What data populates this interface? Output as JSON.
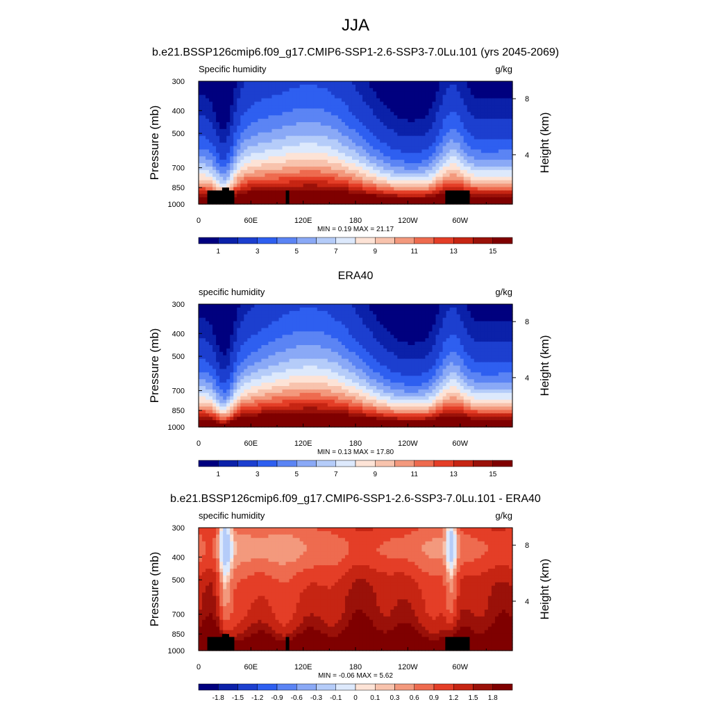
{
  "figure": {
    "title": "JJA"
  },
  "colors": {
    "humidity_scale": [
      "#00007f",
      "#0b21a9",
      "#1c3fcf",
      "#2e5ff0",
      "#5b84f4",
      "#8aa9f6",
      "#b5ccf9",
      "#dde9fc",
      "#fde3d6",
      "#f8c3ad",
      "#f3997d",
      "#ee6b4f",
      "#e43e27",
      "#c62513",
      "#9a1109",
      "#7f0000"
    ],
    "diff_scale": [
      "#00007f",
      "#0b21a9",
      "#1c3fcf",
      "#2e5ff0",
      "#5b84f4",
      "#8aa9f6",
      "#b5ccf9",
      "#dde9fc",
      "#fde3d6",
      "#f8c3ad",
      "#f3997d",
      "#ee6b4f",
      "#e43e27",
      "#c62513",
      "#9a1109",
      "#7f0000"
    ],
    "topography": "#000000"
  },
  "chart_data": [
    {
      "type": "heatmap",
      "title": "b.e21.BSSP126cmip6.f09_g17.CMIP6-SSP1-2.6-SSP3-7.0Lu.101 (yrs 2045-2069)",
      "left_label": "Specific humidity",
      "units": "g/kg",
      "ylabel": "Pressure (mb)",
      "ylabel_right": "Height (km)",
      "x_ticks": [
        "0",
        "60E",
        "120E",
        "180",
        "120W",
        "60W"
      ],
      "x_values": [
        0,
        60,
        120,
        180,
        240,
        300
      ],
      "xlim": [
        0,
        360
      ],
      "y_ticks": [
        "300",
        "400",
        "500",
        "700",
        "850",
        "1000"
      ],
      "y_values": [
        300,
        400,
        500,
        700,
        850,
        1000
      ],
      "ylim": [
        300,
        1000
      ],
      "y_scale": "log",
      "right_ticks": [
        "8",
        "4"
      ],
      "right_values": [
        8,
        4
      ],
      "levels": [
        0.5,
        1,
        2,
        3,
        4,
        5,
        6,
        7,
        8,
        9,
        10,
        11,
        12,
        13,
        14,
        15
      ],
      "colorbar_labels": [
        "1",
        "3",
        "5",
        "7",
        "9",
        "11",
        "13",
        "15"
      ],
      "stats": "MIN =   0.19  MAX =  21.17",
      "field": "model",
      "topography": true
    },
    {
      "type": "heatmap",
      "title": "ERA40",
      "left_label": "specific humidity",
      "units": "g/kg",
      "ylabel": "Pressure (mb)",
      "ylabel_right": "Height (km)",
      "x_ticks": [
        "0",
        "60E",
        "120E",
        "180",
        "120W",
        "60W"
      ],
      "x_values": [
        0,
        60,
        120,
        180,
        240,
        300
      ],
      "xlim": [
        0,
        360
      ],
      "y_ticks": [
        "300",
        "400",
        "500",
        "700",
        "850",
        "1000"
      ],
      "y_values": [
        300,
        400,
        500,
        700,
        850,
        1000
      ],
      "ylim": [
        300,
        1000
      ],
      "y_scale": "log",
      "right_ticks": [
        "8",
        "4"
      ],
      "right_values": [
        8,
        4
      ],
      "levels": [
        0.5,
        1,
        2,
        3,
        4,
        5,
        6,
        7,
        8,
        9,
        10,
        11,
        12,
        13,
        14,
        15
      ],
      "colorbar_labels": [
        "1",
        "3",
        "5",
        "7",
        "9",
        "11",
        "13",
        "15"
      ],
      "stats": "MIN =   0.13  MAX =  17.80",
      "field": "obs",
      "topography": false
    },
    {
      "type": "heatmap",
      "title": "b.e21.BSSP126cmip6.f09_g17.CMIP6-SSP1-2.6-SSP3-7.0Lu.101 - ERA40",
      "left_label": "specific humidity",
      "units": "g/kg",
      "ylabel": "Pressure (mb)",
      "ylabel_right": "Height (km)",
      "x_ticks": [
        "0",
        "60E",
        "120E",
        "180",
        "120W",
        "60W"
      ],
      "x_values": [
        0,
        60,
        120,
        180,
        240,
        300
      ],
      "xlim": [
        0,
        360
      ],
      "y_ticks": [
        "300",
        "400",
        "500",
        "700",
        "850",
        "1000"
      ],
      "y_values": [
        300,
        400,
        500,
        700,
        850,
        1000
      ],
      "ylim": [
        300,
        1000
      ],
      "y_scale": "log",
      "right_ticks": [
        "8",
        "4"
      ],
      "right_values": [
        8,
        4
      ],
      "levels": [
        -2.1,
        -1.8,
        -1.5,
        -1.2,
        -0.9,
        -0.6,
        -0.3,
        -0.1,
        0,
        0.1,
        0.3,
        0.6,
        0.9,
        1.2,
        1.5,
        1.8
      ],
      "colorbar_labels": [
        "-1.8",
        "-1.5",
        "-1.2",
        "-0.9",
        "-0.6",
        "-0.3",
        "-0.1",
        "0",
        "0.1",
        "0.3",
        "0.6",
        "0.9",
        "1.2",
        "1.5",
        "1.8"
      ],
      "stats": "MIN =  -0.06  MAX =    5.62",
      "field": "diff",
      "topography": true
    }
  ]
}
